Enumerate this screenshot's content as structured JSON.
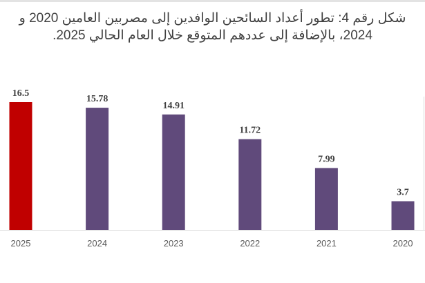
{
  "chart_data": {
    "type": "bar",
    "title": "شكل رقم 4: تطور أعداد السائحين الوافدين إلى مصربين العامين 2020 و 2024، بالإضافة إلى عددهم المتوقع خلال العام الحالي 2025.",
    "categories": [
      "2025",
      "2024",
      "2023",
      "2022",
      "2021",
      "2020"
    ],
    "values": [
      16.5,
      15.78,
      14.91,
      11.72,
      7.99,
      3.7
    ],
    "value_labels": [
      "16.5",
      "15.78",
      "14.91",
      "11.72",
      "7.99",
      "3.7"
    ],
    "colors": [
      "#c00000",
      "#604a7b",
      "#604a7b",
      "#604a7b",
      "#604a7b",
      "#604a7b"
    ],
    "xlabel": "",
    "ylabel": "",
    "ylim": [
      0,
      16.5
    ],
    "grid": false,
    "legend": "none"
  }
}
